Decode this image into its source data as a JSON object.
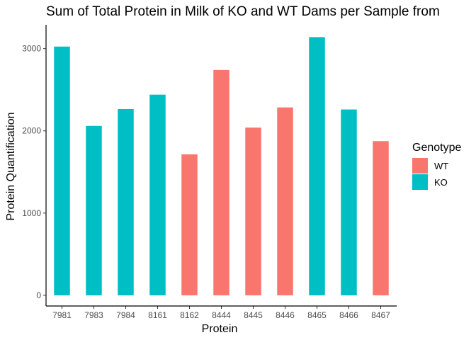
{
  "chart_data": {
    "type": "bar",
    "title": "Sum of Total Protein in Milk of KO and WT Dams per Sample from",
    "xlabel": "Protein",
    "ylabel": "Protein Quantification",
    "categories": [
      "7981",
      "7983",
      "7984",
      "8161",
      "8162",
      "8444",
      "8445",
      "8446",
      "8465",
      "8466",
      "8467"
    ],
    "values": [
      3025,
      2060,
      2265,
      2440,
      1715,
      2740,
      2040,
      2285,
      3140,
      2260,
      1875
    ],
    "genotype": [
      "KO",
      "KO",
      "KO",
      "KO",
      "WT",
      "WT",
      "WT",
      "WT",
      "KO",
      "KO",
      "WT"
    ],
    "ylim": [
      -130,
      3290
    ],
    "yticks": [
      0,
      1000,
      2000,
      3000
    ],
    "ytick_labels": [
      "0",
      "1000",
      "2000",
      "3000"
    ],
    "grid": false,
    "legend": {
      "title": "Genotype",
      "placement": "right",
      "entries": [
        {
          "label": "WT",
          "color": "#F8766D"
        },
        {
          "label": "KO",
          "color": "#00BFC4"
        }
      ]
    }
  }
}
